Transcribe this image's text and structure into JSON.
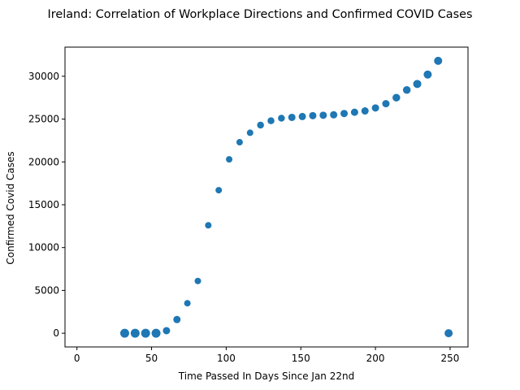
{
  "chart_data": {
    "type": "scatter",
    "title": "Ireland: Correlation of Workplace Directions and Confirmed COVID Cases",
    "xlabel": "Time Passed In Days Since Jan 22nd",
    "ylabel": "Confirmed Covid Cases",
    "xlim": [
      -8,
      262
    ],
    "ylim": [
      -1600,
      33400
    ],
    "xticks": [
      0,
      50,
      100,
      150,
      200,
      250
    ],
    "yticks": [
      0,
      5000,
      10000,
      15000,
      20000,
      25000,
      30000
    ],
    "grid": false,
    "legend": "none",
    "marker_color": "#1f77b4",
    "series": [
      {
        "points": [
          {
            "x": 32,
            "y": 0,
            "size": 10
          },
          {
            "x": 39,
            "y": 0,
            "size": 10
          },
          {
            "x": 46,
            "y": 0,
            "size": 10
          },
          {
            "x": 53,
            "y": 0,
            "size": 10
          },
          {
            "x": 60,
            "y": 300,
            "size": 8
          },
          {
            "x": 67,
            "y": 1600,
            "size": 8
          },
          {
            "x": 74,
            "y": 3500,
            "size": 7
          },
          {
            "x": 81,
            "y": 6100,
            "size": 7
          },
          {
            "x": 88,
            "y": 12600,
            "size": 7
          },
          {
            "x": 95,
            "y": 16700,
            "size": 7
          },
          {
            "x": 102,
            "y": 20300,
            "size": 7
          },
          {
            "x": 109,
            "y": 22300,
            "size": 7
          },
          {
            "x": 116,
            "y": 23400,
            "size": 7
          },
          {
            "x": 123,
            "y": 24300,
            "size": 7.5
          },
          {
            "x": 130,
            "y": 24800,
            "size": 7.5
          },
          {
            "x": 137,
            "y": 25100,
            "size": 7.5
          },
          {
            "x": 144,
            "y": 25200,
            "size": 8
          },
          {
            "x": 151,
            "y": 25300,
            "size": 8
          },
          {
            "x": 158,
            "y": 25400,
            "size": 8
          },
          {
            "x": 165,
            "y": 25450,
            "size": 8
          },
          {
            "x": 172,
            "y": 25500,
            "size": 8
          },
          {
            "x": 179,
            "y": 25650,
            "size": 8
          },
          {
            "x": 186,
            "y": 25800,
            "size": 8
          },
          {
            "x": 193,
            "y": 25950,
            "size": 8
          },
          {
            "x": 200,
            "y": 26300,
            "size": 8
          },
          {
            "x": 207,
            "y": 26800,
            "size": 8
          },
          {
            "x": 214,
            "y": 27500,
            "size": 8.5
          },
          {
            "x": 221,
            "y": 28400,
            "size": 8.5
          },
          {
            "x": 228,
            "y": 29100,
            "size": 9
          },
          {
            "x": 235,
            "y": 30200,
            "size": 9
          },
          {
            "x": 242,
            "y": 31800,
            "size": 9
          },
          {
            "x": 249,
            "y": 0,
            "size": 9
          }
        ]
      }
    ]
  }
}
